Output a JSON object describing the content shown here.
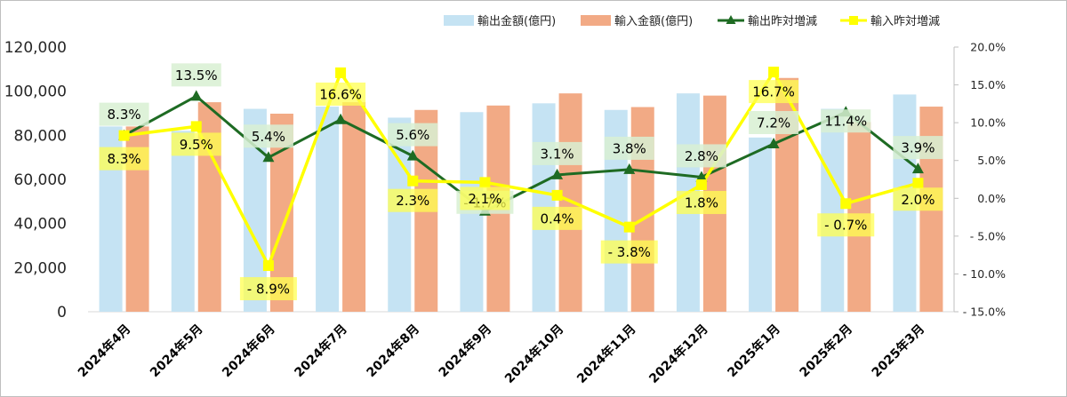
{
  "chart_data": {
    "type": "bar",
    "categories": [
      "2024年4月",
      "2024年5月",
      "2024年6月",
      "2024年7月",
      "2024年8月",
      "2024年9月",
      "2024年10月",
      "2024年11月",
      "2024年12月",
      "2025年1月",
      "2025年2月",
      "2025年3月"
    ],
    "series": [
      {
        "name": "輸出金額(億円)",
        "type": "bar",
        "axis": "left",
        "color": "#c5e3f3",
        "values": [
          84000,
          82000,
          92000,
          93000,
          88000,
          90500,
          94500,
          91500,
          99000,
          79000,
          92000,
          98500
        ]
      },
      {
        "name": "輸入金額(億円)",
        "type": "bar",
        "axis": "left",
        "color": "#f2aa85",
        "values": [
          84000,
          95000,
          89800,
          95000,
          91500,
          93500,
          99000,
          92800,
          98000,
          106000,
          86000,
          93000
        ]
      },
      {
        "name": "輸出昨対増減",
        "type": "line",
        "axis": "right",
        "color": "#1e6b23",
        "marker": "triangle",
        "values": [
          8.3,
          13.5,
          5.4,
          10.4,
          5.6,
          -1.7,
          3.1,
          3.8,
          2.8,
          7.2,
          11.4,
          3.9
        ],
        "labels": [
          "8.3%",
          "13.5%",
          "5.4%",
          "",
          "5.6%",
          "- 1.7%",
          "3.1%",
          "3.8%",
          "2.8%",
          "7.2%",
          "11.4%",
          "3.9%"
        ]
      },
      {
        "name": "輸入昨対増減",
        "type": "line",
        "axis": "right",
        "color": "#ffff00",
        "marker": "square",
        "values": [
          8.3,
          9.5,
          -8.9,
          16.6,
          2.3,
          2.1,
          0.4,
          -3.8,
          1.8,
          16.7,
          -0.7,
          2.0
        ],
        "labels": [
          "8.3%",
          "9.5%",
          "- 8.9%",
          "16.6%",
          "2.3%",
          "2.1%",
          "0.4%",
          "- 3.8%",
          "1.8%",
          "16.7%",
          "- 0.7%",
          "2.0%"
        ]
      }
    ],
    "y_left": {
      "min": 0,
      "max": 120000,
      "step": 20000,
      "tick_labels": [
        "0",
        "20,000",
        "40,000",
        "60,000",
        "80,000",
        "100,000",
        "120,000"
      ]
    },
    "y_right": {
      "min": -15,
      "max": 20,
      "step": 5,
      "tick_labels": [
        "- 15.0%",
        "- 10.0%",
        "- 5.0%",
        "0.0%",
        "5.0%",
        "10.0%",
        "15.0%",
        "20.0%"
      ]
    },
    "legend_position": "top-right",
    "grid": false,
    "title": "",
    "xlabel": "",
    "ylabel": ""
  }
}
